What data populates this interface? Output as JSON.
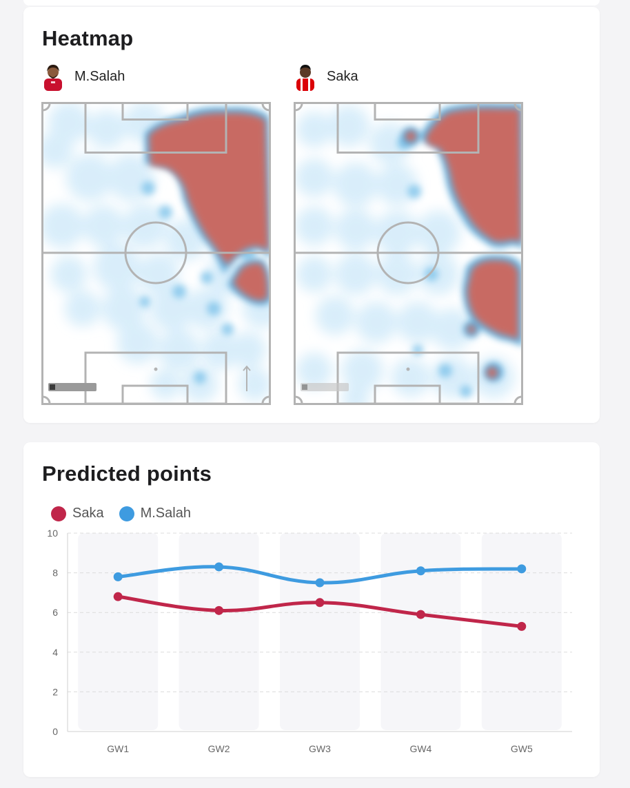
{
  "heatmap": {
    "title": "Heatmap",
    "players": [
      {
        "name": "M.Salah",
        "kit_color": "#c8102e",
        "skin": "#8a5a3c",
        "hair": "#2a1a10",
        "badge_text": "fantasyfootballhub.co.uk"
      },
      {
        "name": "Saka",
        "kit_color": "#db0007",
        "skin": "#5b3a26",
        "hair": "#111111",
        "badge_text": "fantasyfootballhub.co.uk"
      }
    ],
    "colors": {
      "hot": "#c86b63",
      "warm": "#4ea6da",
      "cool": "#d4ecfa",
      "lines": "#b3b3b3"
    }
  },
  "predicted": {
    "title": "Predicted points",
    "chart_data": {
      "type": "line",
      "categories": [
        "GW1",
        "GW2",
        "GW3",
        "GW4",
        "GW5"
      ],
      "series": [
        {
          "name": "Saka",
          "color": "#c0264a",
          "values": [
            6.8,
            6.1,
            6.5,
            5.9,
            5.3
          ]
        },
        {
          "name": "M.Salah",
          "color": "#3e9be0",
          "values": [
            7.8,
            8.3,
            7.5,
            8.1,
            8.2
          ]
        }
      ],
      "ylim": [
        0,
        10
      ],
      "yticks": [
        "0",
        "2",
        "4",
        "6",
        "8",
        "10"
      ],
      "grid": true,
      "legend": "top-left"
    }
  }
}
